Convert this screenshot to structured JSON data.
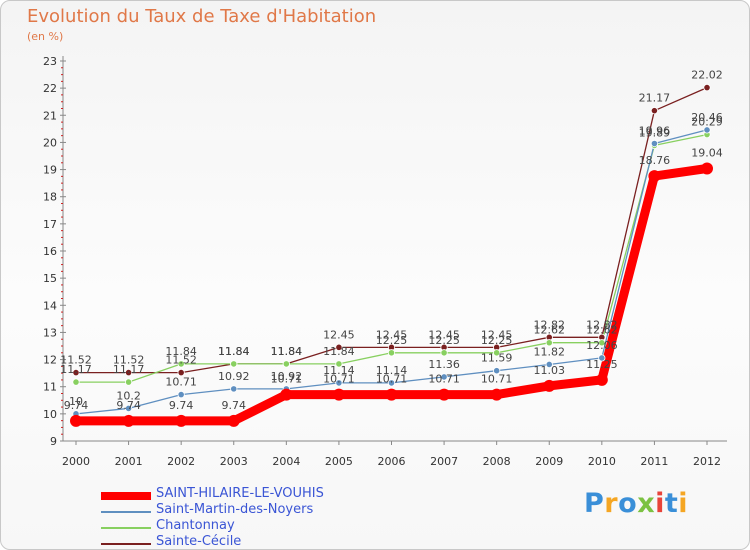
{
  "title": "Evolution du Taux de Taxe d'Habitation",
  "subtitle": "(en %)",
  "colors": {
    "title": "#e07848",
    "legend_text": "#3a55d5",
    "axis": "#888888",
    "grid_dot": "#cc2222"
  },
  "chart_data": {
    "type": "line",
    "title": "Evolution du Taux de Taxe d'Habitation",
    "ylabel": "(en %)",
    "xlabel": "",
    "ylim": [
      9,
      23
    ],
    "y_ticks": [
      "9",
      "10",
      "11",
      "12",
      "13",
      "14",
      "15",
      "16",
      "17",
      "18",
      "19",
      "20",
      "21",
      "22",
      "23"
    ],
    "x": [
      "2000",
      "2001",
      "2002",
      "2003",
      "2004",
      "2005",
      "2006",
      "2007",
      "2008",
      "2009",
      "2010",
      "2011",
      "2012"
    ],
    "series": [
      {
        "name": "SAINT-HILAIRE-LE-VOUHIS",
        "color": "#ff0000",
        "values": [
          9.74,
          9.74,
          9.74,
          9.74,
          10.71,
          10.71,
          10.71,
          10.71,
          10.71,
          11.03,
          11.25,
          18.76,
          19.04
        ],
        "labels": [
          "9.74",
          "9.74",
          "9.74",
          "9.74",
          "10.71",
          "10.71",
          "10.71",
          "10.71",
          "10.71",
          "11.03",
          "11.25",
          "18.76",
          "19.04"
        ]
      },
      {
        "name": "Saint-Martin-des-Noyers",
        "color": "#5f8fc0",
        "values": [
          10,
          10.2,
          10.71,
          10.92,
          10.92,
          11.14,
          11.14,
          11.36,
          11.59,
          11.82,
          12.06,
          19.96,
          20.46
        ],
        "labels": [
          "10",
          "10.2",
          "10.71",
          "10.92",
          "10.92",
          "11.14",
          "11.14",
          "11.36",
          "11.59",
          "11.82",
          "12.06",
          "19.96",
          "20.46"
        ]
      },
      {
        "name": "Chantonnay",
        "color": "#88d060",
        "values": [
          11.17,
          11.17,
          11.84,
          11.84,
          11.84,
          11.84,
          12.25,
          12.25,
          12.25,
          12.62,
          12.62,
          19.89,
          20.29
        ],
        "labels": [
          "11.17",
          "11.17",
          "11.84",
          "11.84",
          "11.84",
          "11.84",
          "12.25",
          "12.25",
          "12.25",
          "12.62",
          "12.62",
          "19.89",
          "20.29"
        ]
      },
      {
        "name": "Sainte-Cécile",
        "color": "#7a2020",
        "values": [
          11.52,
          11.52,
          11.52,
          11.84,
          11.84,
          12.45,
          12.45,
          12.45,
          12.45,
          12.82,
          12.82,
          21.17,
          22.02
        ],
        "labels": [
          "11.52",
          "11.52",
          "11.52",
          "11.84",
          "11.84",
          "12.45",
          "12.45",
          "12.45",
          "12.45",
          "12.82",
          "12.82",
          "21.17",
          "22.02"
        ]
      }
    ]
  },
  "legend": [
    {
      "label": "SAINT-HILAIRE-LE-VOUHIS",
      "color": "#ff0000"
    },
    {
      "label": "Saint-Martin-des-Noyers",
      "color": "#5f8fc0"
    },
    {
      "label": "Chantonnay",
      "color": "#88d060"
    },
    {
      "label": "Sainte-Cécile",
      "color": "#7a2020"
    }
  ],
  "logo": {
    "text": "Proxiti",
    "letter_colors": [
      "#3a8fd8",
      "#f5a623",
      "#3a8fd8",
      "#7cc242",
      "#e8443a",
      "#3a8fd8",
      "#f5a623"
    ]
  }
}
